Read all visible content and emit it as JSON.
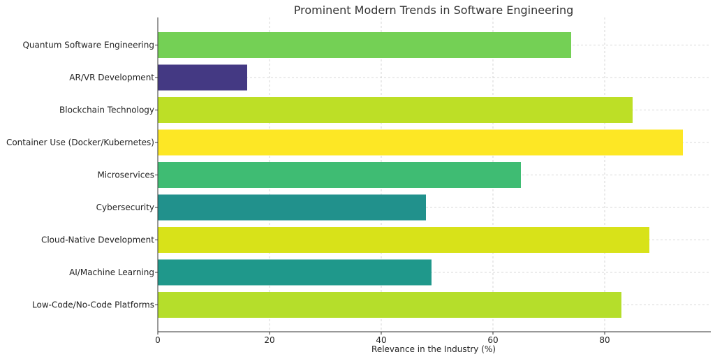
{
  "chart_data": {
    "type": "bar",
    "orientation": "horizontal",
    "title": "Prominent Modern Trends in Software Engineering",
    "xlabel": "Relevance in the Industry (%)",
    "ylabel": "",
    "xlim": [
      0,
      99
    ],
    "xticks": [
      0,
      20,
      40,
      60,
      80
    ],
    "grid": true,
    "categories": [
      "Quantum Software Engineering",
      "AR/VR Development",
      "Blockchain Technology",
      "Container Use (Docker/Kubernetes)",
      "Microservices",
      "Cybersecurity",
      "Cloud-Native Development",
      "AI/Machine Learning",
      "Low-Code/No-Code Platforms"
    ],
    "values": [
      74,
      16,
      85,
      94,
      65,
      48,
      88,
      49,
      83
    ],
    "colors": [
      "#74d055",
      "#443983",
      "#bddf26",
      "#fde725",
      "#3fbc73",
      "#21918c",
      "#d8e219",
      "#1f988b",
      "#b5de2b"
    ]
  }
}
